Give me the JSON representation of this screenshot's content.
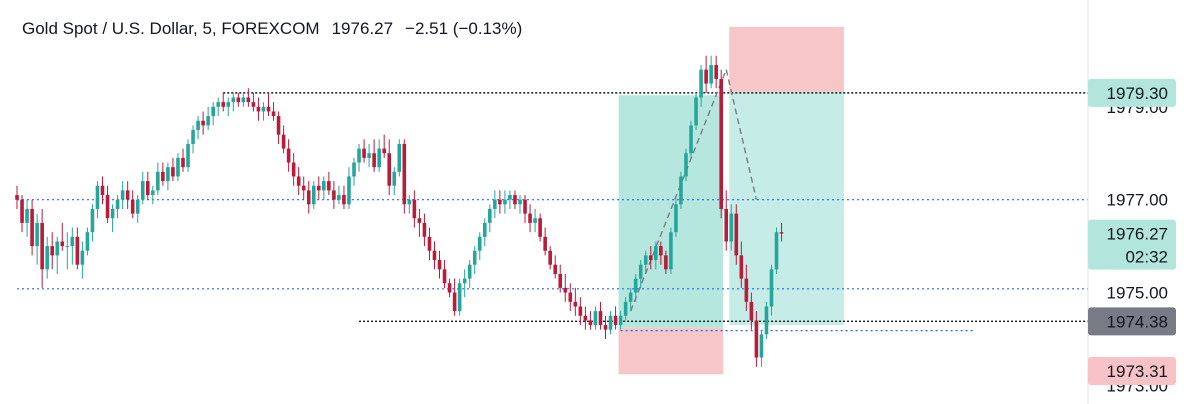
{
  "header": {
    "symbol": "Gold Spot / U.S. Dollar, 5, FOREXCOM",
    "price": "1976.27",
    "change": "−2.51 (−0.13%)"
  },
  "colors": {
    "up": "#26a69a",
    "down": "#b71c3a",
    "profit_zone": "#b2e6dd",
    "loss_zone": "#f7c3c6",
    "dotted_line": "#2962ff",
    "hline": "#131722",
    "badge_green": "#b2e6dd",
    "badge_gray": "#787b86",
    "badge_red": "#f7c3c6"
  },
  "chart_data": {
    "type": "candlestick",
    "title": "Gold Spot / U.S. Dollar, 5, FOREXCOM",
    "y_axis": {
      "position": "right",
      "visible_range": [
        1972.6,
        1981.3
      ],
      "ticks": [
        "1979.00",
        "1977.00",
        "1975.00",
        "1973.00"
      ]
    },
    "price_labels": [
      {
        "text": "1979.30",
        "value": 1979.3,
        "style": "green"
      },
      {
        "text": "1976.27",
        "value": 1976.27,
        "style": "green",
        "sub": "02:32"
      },
      {
        "text": "1974.38",
        "value": 1974.38,
        "style": "gray"
      },
      {
        "text": "1973.31",
        "value": 1973.31,
        "style": "red"
      }
    ],
    "horizontal_lines": [
      {
        "value": 1979.3,
        "style": "black-dotted",
        "from_bar": 41
      },
      {
        "value": 1974.38,
        "style": "black-dotted",
        "from_bar": 68
      },
      {
        "value": 1977.0,
        "style": "blue-dotted",
        "from_bar": 0
      },
      {
        "value": 1975.08,
        "style": "blue-dotted",
        "from_bar": 0
      },
      {
        "value": 1974.18,
        "style": "blue-dotted",
        "from_bar": 120
      }
    ],
    "positions": [
      {
        "type": "long",
        "from_bar": 120,
        "to_bar": 140,
        "entry": 1974.24,
        "target": 1979.25,
        "stop": 1973.24
      },
      {
        "type": "short",
        "from_bar": 142,
        "to_bar": 164,
        "entry": 1979.32,
        "target": 1974.3,
        "stop": 1980.72
      }
    ],
    "trend_segments": [
      {
        "from_bar": 122,
        "from_price": 1974.6,
        "to_bar": 141,
        "to_price": 1979.8
      },
      {
        "from_bar": 141,
        "from_price": 1979.8,
        "to_bar": 147,
        "to_price": 1977.0
      }
    ],
    "candles": [
      [
        1977.1,
        1977.3,
        1976.8,
        1977.0
      ],
      [
        1977.0,
        1977.1,
        1976.3,
        1976.5
      ],
      [
        1976.5,
        1977.0,
        1976.2,
        1976.8
      ],
      [
        1976.8,
        1977.0,
        1975.8,
        1976.0
      ],
      [
        1976.0,
        1976.7,
        1975.6,
        1976.5
      ],
      [
        1976.5,
        1976.8,
        1975.1,
        1975.5
      ],
      [
        1975.5,
        1976.2,
        1975.3,
        1976.0
      ],
      [
        1976.0,
        1976.3,
        1975.5,
        1975.8
      ],
      [
        1975.8,
        1976.2,
        1975.4,
        1976.1
      ],
      [
        1976.1,
        1976.5,
        1975.9,
        1976.0
      ],
      [
        1976.0,
        1976.3,
        1975.5,
        1976.0
      ],
      [
        1976.0,
        1976.4,
        1975.6,
        1976.2
      ],
      [
        1976.2,
        1976.4,
        1975.5,
        1975.6
      ],
      [
        1975.6,
        1976.1,
        1975.3,
        1975.9
      ],
      [
        1975.9,
        1976.4,
        1975.8,
        1976.3
      ],
      [
        1976.3,
        1976.9,
        1976.1,
        1976.8
      ],
      [
        1976.8,
        1977.4,
        1976.6,
        1977.3
      ],
      [
        1977.3,
        1977.5,
        1976.9,
        1977.1
      ],
      [
        1977.1,
        1977.3,
        1976.5,
        1976.6
      ],
      [
        1976.6,
        1976.9,
        1976.3,
        1976.8
      ],
      [
        1976.8,
        1977.1,
        1976.6,
        1977.0
      ],
      [
        1977.0,
        1977.4,
        1976.8,
        1977.2
      ],
      [
        1977.2,
        1977.4,
        1976.8,
        1977.0
      ],
      [
        1977.0,
        1977.2,
        1976.6,
        1976.7
      ],
      [
        1976.7,
        1977.1,
        1976.5,
        1977.0
      ],
      [
        1977.0,
        1977.6,
        1976.9,
        1977.4
      ],
      [
        1977.4,
        1977.6,
        1977.0,
        1977.1
      ],
      [
        1977.1,
        1977.3,
        1976.9,
        1977.2
      ],
      [
        1977.2,
        1977.8,
        1977.1,
        1977.6
      ],
      [
        1977.6,
        1977.8,
        1977.3,
        1977.4
      ],
      [
        1977.4,
        1977.8,
        1977.2,
        1977.7
      ],
      [
        1977.7,
        1977.9,
        1977.4,
        1977.5
      ],
      [
        1977.5,
        1978.0,
        1977.4,
        1977.9
      ],
      [
        1977.9,
        1978.1,
        1977.6,
        1977.7
      ],
      [
        1977.7,
        1978.3,
        1977.6,
        1978.2
      ],
      [
        1978.2,
        1978.6,
        1978.0,
        1978.5
      ],
      [
        1978.5,
        1978.8,
        1978.3,
        1978.7
      ],
      [
        1978.7,
        1978.9,
        1978.4,
        1978.6
      ],
      [
        1978.6,
        1979.0,
        1978.5,
        1978.8
      ],
      [
        1978.8,
        1979.1,
        1978.6,
        1979.0
      ],
      [
        1979.0,
        1979.2,
        1978.8,
        1979.1
      ],
      [
        1979.1,
        1979.3,
        1978.9,
        1979.0
      ],
      [
        1979.0,
        1979.2,
        1978.8,
        1979.1
      ],
      [
        1979.1,
        1979.3,
        1978.9,
        1979.2
      ],
      [
        1979.2,
        1979.3,
        1979.0,
        1979.1
      ],
      [
        1979.1,
        1979.3,
        1979.0,
        1979.2
      ],
      [
        1979.2,
        1979.4,
        1979.0,
        1979.1
      ],
      [
        1979.1,
        1979.3,
        1978.9,
        1979.0
      ],
      [
        1979.0,
        1979.2,
        1978.7,
        1978.9
      ],
      [
        1978.9,
        1979.1,
        1978.7,
        1979.0
      ],
      [
        1979.0,
        1979.3,
        1978.8,
        1978.9
      ],
      [
        1978.9,
        1979.1,
        1978.7,
        1978.8
      ],
      [
        1978.8,
        1978.9,
        1978.2,
        1978.4
      ],
      [
        1978.4,
        1978.6,
        1978.0,
        1978.1
      ],
      [
        1978.1,
        1978.3,
        1977.6,
        1977.8
      ],
      [
        1977.8,
        1978.0,
        1977.3,
        1977.5
      ],
      [
        1977.5,
        1977.7,
        1977.1,
        1977.3
      ],
      [
        1977.3,
        1977.5,
        1977.0,
        1977.2
      ],
      [
        1977.2,
        1977.4,
        1976.7,
        1976.9
      ],
      [
        1976.9,
        1977.4,
        1976.8,
        1977.3
      ],
      [
        1977.3,
        1977.5,
        1977.0,
        1977.2
      ],
      [
        1977.2,
        1977.5,
        1977.0,
        1977.4
      ],
      [
        1977.4,
        1977.6,
        1977.1,
        1977.2
      ],
      [
        1977.2,
        1977.4,
        1976.8,
        1977.0
      ],
      [
        1977.0,
        1977.3,
        1976.9,
        1977.1
      ],
      [
        1977.1,
        1977.3,
        1976.8,
        1976.9
      ],
      [
        1976.9,
        1977.7,
        1976.8,
        1977.5
      ],
      [
        1977.5,
        1977.9,
        1977.3,
        1977.8
      ],
      [
        1977.8,
        1978.2,
        1977.6,
        1978.1
      ],
      [
        1978.1,
        1978.3,
        1977.8,
        1977.9
      ],
      [
        1977.9,
        1978.2,
        1977.7,
        1978.0
      ],
      [
        1978.0,
        1978.3,
        1977.6,
        1977.7
      ],
      [
        1977.7,
        1978.3,
        1977.6,
        1978.1
      ],
      [
        1978.1,
        1978.4,
        1977.9,
        1978.0
      ],
      [
        1978.0,
        1978.3,
        1977.1,
        1977.3
      ],
      [
        1977.3,
        1977.7,
        1977.1,
        1977.6
      ],
      [
        1977.6,
        1978.3,
        1977.5,
        1978.2
      ],
      [
        1978.2,
        1978.3,
        1976.7,
        1976.9
      ],
      [
        1976.9,
        1977.1,
        1976.7,
        1977.0
      ],
      [
        1977.0,
        1977.2,
        1976.4,
        1976.6
      ],
      [
        1976.6,
        1976.8,
        1976.2,
        1976.5
      ],
      [
        1976.5,
        1976.7,
        1976.0,
        1976.2
      ],
      [
        1976.2,
        1976.4,
        1975.7,
        1975.9
      ],
      [
        1975.9,
        1976.1,
        1975.5,
        1975.7
      ],
      [
        1975.7,
        1975.9,
        1975.3,
        1975.5
      ],
      [
        1975.5,
        1975.7,
        1975.1,
        1975.2
      ],
      [
        1975.2,
        1975.3,
        1974.9,
        1975.0
      ],
      [
        1975.0,
        1975.3,
        1974.5,
        1974.6
      ],
      [
        1974.6,
        1975.3,
        1974.5,
        1975.2
      ],
      [
        1975.2,
        1975.5,
        1974.9,
        1975.3
      ],
      [
        1975.3,
        1975.7,
        1975.1,
        1975.6
      ],
      [
        1975.6,
        1976.0,
        1975.4,
        1975.9
      ],
      [
        1975.9,
        1976.3,
        1975.7,
        1976.2
      ],
      [
        1976.2,
        1976.6,
        1976.0,
        1976.5
      ],
      [
        1976.5,
        1976.9,
        1976.3,
        1976.8
      ],
      [
        1976.8,
        1977.2,
        1976.6,
        1977.0
      ],
      [
        1977.0,
        1977.2,
        1976.7,
        1976.9
      ],
      [
        1976.9,
        1977.2,
        1976.7,
        1977.0
      ],
      [
        1977.0,
        1977.2,
        1976.8,
        1977.1
      ],
      [
        1977.1,
        1977.2,
        1976.8,
        1976.9
      ],
      [
        1976.9,
        1977.1,
        1976.7,
        1977.0
      ],
      [
        1977.0,
        1977.1,
        1976.5,
        1976.7
      ],
      [
        1976.7,
        1976.9,
        1976.3,
        1976.5
      ],
      [
        1976.5,
        1976.8,
        1976.3,
        1976.6
      ],
      [
        1976.6,
        1976.7,
        1976.1,
        1976.2
      ],
      [
        1976.2,
        1976.4,
        1975.8,
        1975.9
      ],
      [
        1975.9,
        1976.0,
        1975.5,
        1975.6
      ],
      [
        1975.6,
        1975.8,
        1975.3,
        1975.4
      ],
      [
        1975.4,
        1975.6,
        1975.0,
        1975.1
      ],
      [
        1975.1,
        1975.4,
        1974.8,
        1975.0
      ],
      [
        1975.0,
        1975.2,
        1974.6,
        1974.8
      ],
      [
        1974.8,
        1975.1,
        1974.5,
        1974.7
      ],
      [
        1974.7,
        1974.9,
        1974.3,
        1974.5
      ],
      [
        1974.5,
        1974.7,
        1974.2,
        1974.4
      ],
      [
        1974.4,
        1974.6,
        1974.2,
        1974.3
      ],
      [
        1974.3,
        1974.7,
        1974.2,
        1974.6
      ],
      [
        1974.6,
        1974.8,
        1974.2,
        1974.3
      ],
      [
        1974.3,
        1974.5,
        1974.0,
        1974.2
      ],
      [
        1974.2,
        1974.6,
        1974.1,
        1974.5
      ],
      [
        1974.5,
        1974.7,
        1974.2,
        1974.3
      ],
      [
        1974.3,
        1974.6,
        1974.2,
        1974.5
      ],
      [
        1974.5,
        1974.9,
        1974.4,
        1974.8
      ],
      [
        1974.8,
        1975.1,
        1974.6,
        1975.0
      ],
      [
        1975.0,
        1975.4,
        1974.8,
        1975.3
      ],
      [
        1975.3,
        1975.7,
        1975.1,
        1975.6
      ],
      [
        1975.6,
        1975.9,
        1975.4,
        1975.8
      ],
      [
        1975.8,
        1976.0,
        1975.5,
        1975.7
      ],
      [
        1975.7,
        1976.1,
        1975.5,
        1976.0
      ],
      [
        1976.0,
        1976.1,
        1975.6,
        1975.8
      ],
      [
        1975.8,
        1975.9,
        1975.4,
        1975.5
      ],
      [
        1975.5,
        1976.4,
        1975.4,
        1976.3
      ],
      [
        1976.3,
        1977.0,
        1976.2,
        1976.9
      ],
      [
        1976.9,
        1977.6,
        1976.8,
        1977.5
      ],
      [
        1977.5,
        1978.1,
        1977.4,
        1978.0
      ],
      [
        1978.0,
        1978.7,
        1977.9,
        1978.6
      ],
      [
        1978.6,
        1979.3,
        1978.5,
        1979.2
      ],
      [
        1979.2,
        1979.9,
        1979.0,
        1979.8
      ],
      [
        1979.8,
        1980.1,
        1979.3,
        1979.5
      ],
      [
        1979.5,
        1980.1,
        1979.4,
        1979.9
      ],
      [
        1979.9,
        1980.1,
        1979.4,
        1979.6
      ],
      [
        1979.6,
        1979.8,
        1976.6,
        1976.8
      ],
      [
        1976.8,
        1977.2,
        1975.9,
        1976.1
      ],
      [
        1976.1,
        1976.9,
        1975.9,
        1976.7
      ],
      [
        1976.7,
        1976.9,
        1975.6,
        1975.8
      ],
      [
        1975.8,
        1976.1,
        1975.1,
        1975.3
      ],
      [
        1975.3,
        1975.6,
        1974.6,
        1974.8
      ],
      [
        1974.8,
        1975.0,
        1974.2,
        1974.4
      ],
      [
        1974.4,
        1974.6,
        1973.4,
        1973.6
      ],
      [
        1973.6,
        1974.2,
        1973.4,
        1974.1
      ],
      [
        1974.1,
        1974.8,
        1974.0,
        1974.7
      ],
      [
        1974.7,
        1975.6,
        1974.5,
        1975.5
      ],
      [
        1975.5,
        1976.4,
        1975.4,
        1976.3
      ],
      [
        1976.3,
        1976.5,
        1976.1,
        1976.27
      ]
    ]
  }
}
